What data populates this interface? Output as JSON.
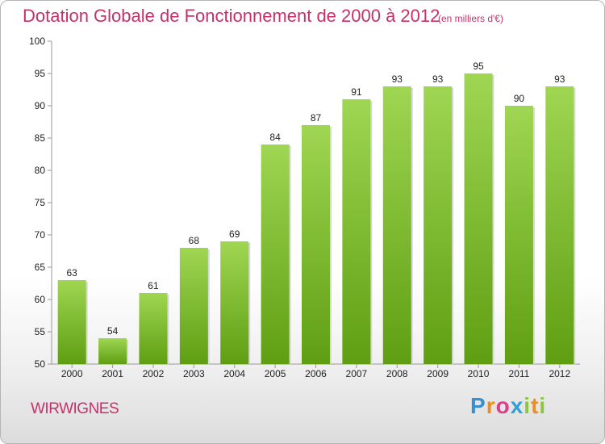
{
  "header": {
    "title": "Dotation Globale de Fonctionnement de 2000 à 2012",
    "subtitle": "(en milliers d'€)"
  },
  "footer": {
    "commune": "WIRWIGNES",
    "logo_text": "Proxiti",
    "logo_letters": [
      {
        "ch": "P",
        "color": "#3a8fd0"
      },
      {
        "ch": "r",
        "color": "#f08c1e"
      },
      {
        "ch": "o",
        "color": "#e03c8c"
      },
      {
        "ch": "x",
        "color": "#2fa0d8"
      },
      {
        "ch": "i",
        "color": "#8cc63f"
      },
      {
        "ch": "t",
        "color": "#f08c1e"
      },
      {
        "ch": "i",
        "color": "#8cc63f"
      }
    ]
  },
  "colors": {
    "bar_top": "#9fd653",
    "bar_bottom": "#5f9e12",
    "title": "#c8306a",
    "grid": "#cccccc"
  },
  "chart_data": {
    "type": "bar",
    "title": "Dotation Globale de Fonctionnement de 2000 à 2012",
    "subtitle": "(en milliers d'€)",
    "xlabel": "",
    "ylabel": "",
    "categories": [
      "2000",
      "2001",
      "2002",
      "2003",
      "2004",
      "2005",
      "2006",
      "2007",
      "2008",
      "2009",
      "2010",
      "2011",
      "2012"
    ],
    "values": [
      63,
      54,
      61,
      68,
      69,
      84,
      87,
      91,
      93,
      93,
      95,
      90,
      93
    ],
    "ylim": [
      50,
      100
    ],
    "yticks": [
      50,
      55,
      60,
      65,
      70,
      75,
      80,
      85,
      90,
      95,
      100
    ],
    "grid": false,
    "legend": "none"
  }
}
